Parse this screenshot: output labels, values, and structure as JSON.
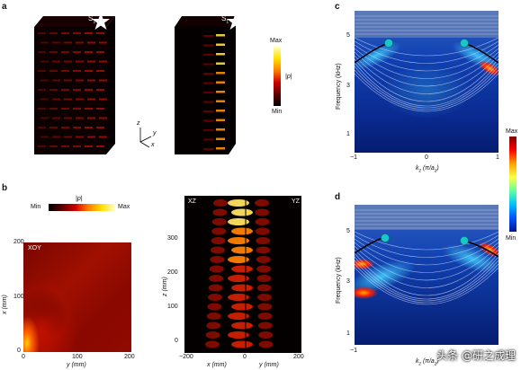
{
  "panels": {
    "a": {
      "letter": "a",
      "source_label_left": "S",
      "source_sub_left": "1",
      "source_label_right": "S",
      "source_sub_right": "1",
      "colorbar": {
        "max": "Max",
        "min": "Min",
        "label": "|p|"
      },
      "axes_x": "x",
      "axes_y": "y",
      "axes_z": "z"
    },
    "b": {
      "letter": "b",
      "colorbar": {
        "min": "Min",
        "max": "Max",
        "label": "|p|"
      },
      "xoy": {
        "tag": "XOY",
        "xlabel": "y (mm)",
        "ylabel": "x (mm)",
        "xticks": [
          "0",
          "100",
          "200"
        ],
        "yticks": [
          "0",
          "100",
          "200"
        ]
      },
      "side": {
        "tag_left": "XZ",
        "tag_right": "YZ",
        "xlabel_left": "x (mm)",
        "xlabel_right": "y (mm)",
        "ylabel": "z (mm)",
        "xticks": [
          "−200",
          "0",
          "200"
        ],
        "yticks": [
          "0",
          "100",
          "200",
          "300"
        ]
      }
    },
    "c": {
      "letter": "c",
      "ylabel": "Frequency (kHz)",
      "xlabel": "k",
      "xlabel_sub": "z",
      "xlabel_unit": " (π/a",
      "xlabel_unit_sub": "z",
      "xlabel_close": ")",
      "yticks": [
        "1",
        "3",
        "5"
      ],
      "xticks": [
        "−1",
        "0",
        "1"
      ]
    },
    "cbar_cd": {
      "max": "Max",
      "min": "Min"
    },
    "d": {
      "letter": "d",
      "ylabel": "Frequency (kHz)",
      "xlabel": "k",
      "xlabel_sub": "z",
      "xlabel_unit": " (π/a",
      "xlabel_unit_sub": "z",
      "xlabel_close": ")",
      "yticks": [
        "1",
        "3",
        "5"
      ],
      "xticks": [
        "−1"
      ]
    }
  },
  "watermark": "头条 @研之成理",
  "colors": {
    "hot_dark": "#1a0000",
    "hot_red": "#c00000",
    "hot_yellow": "#ffe000",
    "jet_blue": "#1030a0",
    "cyan_ball": "#18c8c8"
  }
}
